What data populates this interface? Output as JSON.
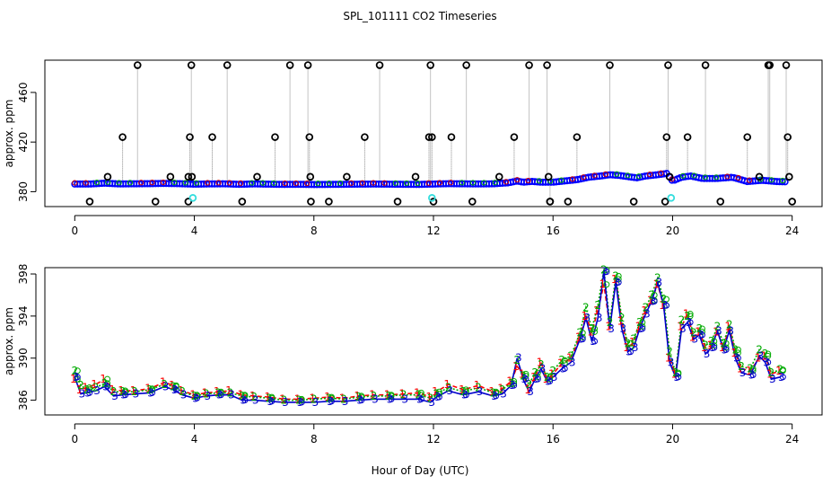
{
  "figure_title": "SPL_101111  CO2 Timeseries",
  "shared_xlabel": "Hour of Day (UTC)",
  "chart_data": [
    {
      "type": "scatter",
      "panel": "top",
      "title": "",
      "xlabel": "",
      "ylabel": "approx. ppm",
      "xlim": [
        -1,
        25
      ],
      "ylim": [
        368,
        486
      ],
      "xticks": [
        0,
        4,
        8,
        12,
        16,
        20,
        24
      ],
      "yticks": [
        380,
        420,
        460
      ],
      "grid": false,
      "legend": "none",
      "baseline_color": "#0000ff",
      "baseline_hours": [
        0.0,
        0.5,
        1.0,
        1.5,
        2.0,
        2.5,
        3.0,
        3.5,
        4.0,
        4.5,
        5.0,
        5.5,
        6.0,
        6.5,
        7.0,
        7.5,
        8.0,
        8.5,
        9.0,
        9.5,
        10.0,
        10.5,
        11.0,
        11.5,
        12.0,
        12.5,
        13.0,
        13.5,
        14.0,
        14.5,
        14.8,
        15.0,
        15.3,
        15.6,
        16.0,
        16.4,
        16.8,
        17.2,
        17.6,
        17.9,
        18.2,
        18.5,
        18.8,
        19.1,
        19.5,
        19.8,
        20.0,
        20.3,
        20.6,
        21.0,
        21.5,
        22.0,
        22.5,
        23.0,
        23.5,
        23.8
      ],
      "baseline_ppm": [
        386.5,
        386.5,
        387.2,
        386.6,
        386.7,
        386.8,
        387.0,
        386.8,
        386.4,
        386.6,
        386.7,
        386.3,
        386.6,
        386.4,
        386.2,
        386.3,
        386.1,
        386.2,
        386.3,
        386.4,
        386.5,
        386.4,
        386.3,
        386.2,
        386.5,
        386.8,
        386.7,
        386.6,
        386.7,
        387.5,
        389.0,
        388.0,
        388.6,
        388.0,
        388.0,
        389.0,
        390.0,
        392.0,
        393.0,
        394.0,
        393.5,
        392.5,
        391.5,
        393.0,
        394.0,
        395.0,
        389.0,
        392.0,
        393.0,
        391.0,
        391.0,
        392.0,
        388.5,
        389.5,
        388.5,
        388.3
      ],
      "spike_color": "#000000",
      "spike_hours": [
        1.1,
        1.6,
        2.1,
        3.2,
        3.8,
        3.85,
        3.9,
        3.92,
        4.6,
        5.1,
        6.1,
        6.7,
        7.2,
        7.8,
        7.85,
        7.88,
        9.1,
        9.7,
        10.2,
        11.4,
        11.85,
        11.9,
        11.95,
        12.6,
        13.1,
        14.2,
        14.7,
        15.2,
        15.8,
        15.85,
        15.9,
        16.8,
        17.9,
        19.8,
        19.85,
        19.9,
        20.5,
        21.1,
        22.5,
        22.9,
        23.2,
        23.25,
        23.8,
        23.85,
        23.9
      ],
      "spike_ppm": [
        392,
        424,
        482,
        392,
        392,
        424,
        482,
        392,
        424,
        482,
        392,
        424,
        482,
        482,
        424,
        392,
        392,
        424,
        482,
        392,
        424,
        482,
        424,
        424,
        482,
        392,
        424,
        482,
        482,
        392,
        372,
        424,
        482,
        424,
        482,
        392,
        424,
        482,
        424,
        392,
        482,
        482,
        482,
        424,
        392
      ],
      "low_hours": [
        0.5,
        2.7,
        3.8,
        5.6,
        7.9,
        8.5,
        10.8,
        12.0,
        13.3,
        15.9,
        16.5,
        18.7,
        19.75,
        21.6,
        24.0
      ],
      "low_ppm": [
        372,
        372,
        372,
        372,
        372,
        372,
        372,
        372,
        372,
        372,
        372,
        372,
        372,
        372,
        372
      ],
      "cyan_color": "#33dddd",
      "cyan_hours": [
        3.95,
        11.95,
        19.95
      ],
      "cyan_ppm": [
        375,
        375,
        375
      ]
    },
    {
      "type": "line",
      "panel": "bottom",
      "title": "",
      "xlabel": "Hour of Day (UTC)",
      "ylabel": "approx. ppm",
      "xlim": [
        -1,
        25
      ],
      "ylim": [
        384.6,
        398.6
      ],
      "xticks": [
        0,
        4,
        8,
        12,
        16,
        20,
        24
      ],
      "yticks": [
        386,
        390,
        394,
        398
      ],
      "grid": false,
      "legend": "none",
      "series": [
        {
          "name": "1",
          "color": "#ff0000",
          "x": [
            0.0,
            0.2,
            0.4,
            0.7,
            1.0,
            1.3,
            1.6,
            2.0,
            2.5,
            3.0,
            3.3,
            3.6,
            4.0,
            4.4,
            4.8,
            5.2,
            5.6,
            6.0,
            6.5,
            7.0,
            7.5,
            8.0,
            8.5,
            9.0,
            9.5,
            10.0,
            10.5,
            11.0,
            11.5,
            11.9,
            12.1,
            12.5,
            13.0,
            13.5,
            14.0,
            14.3,
            14.6,
            14.8,
            15.0,
            15.2,
            15.4,
            15.6,
            15.8,
            16.0,
            16.3,
            16.6,
            16.9,
            17.1,
            17.3,
            17.5,
            17.7,
            17.9,
            18.1,
            18.3,
            18.5,
            18.7,
            18.9,
            19.1,
            19.3,
            19.5,
            19.7,
            19.9,
            20.1,
            20.3,
            20.5,
            20.7,
            20.9,
            21.1,
            21.3,
            21.5,
            21.7,
            21.9,
            22.1,
            22.3,
            22.6,
            22.9,
            23.1,
            23.3,
            23.6
          ],
          "values": [
            388.0,
            387.0,
            387.2,
            387.5,
            388.0,
            387.0,
            386.9,
            386.9,
            387.1,
            387.7,
            387.4,
            386.9,
            386.5,
            386.7,
            386.8,
            386.9,
            386.5,
            386.4,
            386.3,
            386.1,
            386.1,
            386.2,
            386.3,
            386.2,
            386.4,
            386.5,
            386.5,
            386.6,
            386.7,
            386.3,
            386.8,
            387.5,
            387.0,
            387.4,
            386.8,
            387.1,
            387.8,
            389.2,
            388.5,
            387.0,
            388.2,
            389.6,
            388.0,
            388.5,
            389.5,
            390.0,
            392.0,
            394.0,
            392.5,
            394.5,
            397.0,
            393.0,
            397.5,
            393.5,
            391.0,
            391.5,
            393.0,
            394.5,
            395.5,
            397.0,
            395.0,
            390.0,
            388.5,
            393.0,
            394.2,
            392.0,
            392.5,
            391.0,
            391.2,
            392.5,
            391.0,
            393.0,
            390.5,
            389.0,
            388.8,
            390.0,
            390.2,
            388.5,
            388.8
          ]
        },
        {
          "name": "2",
          "color": "#00aa00",
          "x": [
            0.0,
            0.2,
            0.4,
            0.7,
            1.0,
            1.3,
            1.6,
            2.0,
            2.5,
            3.0,
            3.3,
            3.6,
            4.0,
            4.4,
            4.8,
            5.2,
            5.6,
            6.0,
            6.5,
            7.0,
            7.5,
            8.0,
            8.5,
            9.0,
            9.5,
            10.0,
            10.5,
            11.0,
            11.5,
            11.9,
            12.1,
            12.5,
            13.0,
            13.5,
            14.0,
            14.3,
            14.6,
            14.8,
            15.0,
            15.2,
            15.4,
            15.6,
            15.8,
            16.0,
            16.3,
            16.6,
            16.9,
            17.1,
            17.3,
            17.5,
            17.7,
            17.9,
            18.1,
            18.3,
            18.5,
            18.7,
            18.9,
            19.1,
            19.3,
            19.5,
            19.7,
            19.9,
            20.1,
            20.3,
            20.5,
            20.7,
            20.9,
            21.1,
            21.3,
            21.5,
            21.7,
            21.9,
            22.1,
            22.3,
            22.6,
            22.9,
            23.1,
            23.3,
            23.6
          ],
          "values": [
            388.8,
            387.4,
            387.0,
            387.2,
            387.6,
            386.8,
            386.8,
            386.8,
            387.0,
            387.5,
            387.3,
            386.8,
            386.4,
            386.6,
            386.7,
            386.7,
            386.4,
            386.3,
            386.2,
            386.0,
            386.0,
            386.1,
            386.2,
            386.1,
            386.3,
            386.4,
            386.4,
            386.5,
            386.5,
            386.2,
            386.6,
            387.2,
            386.8,
            387.2,
            386.7,
            387.0,
            387.6,
            389.8,
            388.3,
            387.5,
            388.6,
            389.4,
            388.2,
            388.8,
            389.8,
            390.2,
            392.4,
            394.8,
            392.8,
            395.0,
            398.4,
            393.4,
            397.8,
            393.8,
            391.4,
            391.8,
            393.4,
            394.8,
            396.0,
            397.6,
            395.6,
            390.6,
            388.6,
            393.6,
            394.0,
            392.4,
            392.8,
            391.2,
            391.6,
            393.0,
            391.4,
            393.2,
            390.8,
            389.2,
            389.0,
            390.8,
            390.4,
            388.6,
            388.9
          ]
        },
        {
          "name": "3",
          "color": "#0000cc",
          "x": [
            0.0,
            0.2,
            0.4,
            0.7,
            1.0,
            1.3,
            1.6,
            2.0,
            2.5,
            3.0,
            3.3,
            3.6,
            4.0,
            4.4,
            4.8,
            5.2,
            5.6,
            6.0,
            6.5,
            7.0,
            7.5,
            8.0,
            8.5,
            9.0,
            9.5,
            10.0,
            10.5,
            11.0,
            11.5,
            11.9,
            12.1,
            12.5,
            13.0,
            13.5,
            14.0,
            14.3,
            14.6,
            14.8,
            15.0,
            15.2,
            15.4,
            15.6,
            15.8,
            16.0,
            16.3,
            16.6,
            16.9,
            17.1,
            17.3,
            17.5,
            17.7,
            17.9,
            18.1,
            18.3,
            18.5,
            18.7,
            18.9,
            19.1,
            19.3,
            19.5,
            19.7,
            19.9,
            20.1,
            20.3,
            20.5,
            20.7,
            20.9,
            21.1,
            21.3,
            21.5,
            21.7,
            21.9,
            22.1,
            22.3,
            22.6,
            22.9,
            23.1,
            23.3,
            23.6
          ],
          "values": [
            388.2,
            386.6,
            386.7,
            386.9,
            387.3,
            386.4,
            386.5,
            386.6,
            386.7,
            387.3,
            387.0,
            386.5,
            386.2,
            386.4,
            386.5,
            386.5,
            386.0,
            386.0,
            385.9,
            385.8,
            385.8,
            385.8,
            385.9,
            385.9,
            386.0,
            386.1,
            386.1,
            386.1,
            386.1,
            385.8,
            386.3,
            386.9,
            386.5,
            386.8,
            386.4,
            386.6,
            387.4,
            390.0,
            388.0,
            386.8,
            388.0,
            389.0,
            387.8,
            388.2,
            389.0,
            389.6,
            391.8,
            393.8,
            391.6,
            393.8,
            398.2,
            392.8,
            397.2,
            392.8,
            390.6,
            391.0,
            392.8,
            394.2,
            395.4,
            397.2,
            395.0,
            389.6,
            388.2,
            392.8,
            393.4,
            391.8,
            392.2,
            390.4,
            391.0,
            392.6,
            390.8,
            392.6,
            390.0,
            388.6,
            388.4,
            390.2,
            389.6,
            388.0,
            388.2
          ]
        }
      ]
    }
  ]
}
